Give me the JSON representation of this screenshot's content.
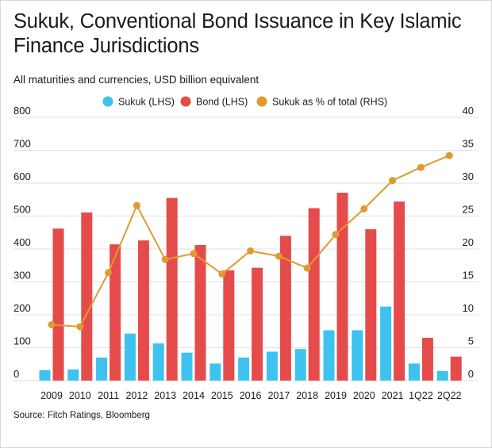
{
  "title": "Sukuk, Conventional Bond Issuance in Key Islamic Finance Jurisdictions",
  "subtitle": "All maturities and currencies, USD billion equivalent",
  "source": "Source: Fitch Ratings, Bloomberg",
  "colors": {
    "sukuk": "#3ec3f0",
    "bond": "#e64b4b",
    "ratio": "#e09a2e",
    "grid": "#e2e2e2",
    "text": "#1a1a1a"
  },
  "chart_data": {
    "type": "bar",
    "title": "Sukuk, Conventional Bond Issuance in Key Islamic Finance Jurisdictions",
    "subtitle": "All maturities and currencies, USD billion equivalent",
    "categories": [
      "2009",
      "2010",
      "2011",
      "2012",
      "2013",
      "2014",
      "2015",
      "2016",
      "2017",
      "2018",
      "2019",
      "2020",
      "2021",
      "1Q22",
      "2Q22"
    ],
    "series": [
      {
        "name": "Sukuk (LHS)",
        "kind": "bar",
        "axis": "left",
        "values": [
          32,
          34,
          70,
          143,
          113,
          85,
          52,
          70,
          88,
          96,
          153,
          153,
          225,
          52,
          29
        ]
      },
      {
        "name": "Bond (LHS)",
        "kind": "bar",
        "axis": "left",
        "values": [
          462,
          511,
          414,
          426,
          555,
          412,
          335,
          343,
          440,
          524,
          571,
          460,
          544,
          130,
          73
        ]
      },
      {
        "name": "Sukuk as % of total (RHS)",
        "kind": "line",
        "axis": "right",
        "values": [
          8.5,
          8.2,
          16.4,
          26.6,
          18.4,
          19.3,
          16.2,
          19.7,
          18.9,
          17.1,
          22.2,
          26.1,
          30.4,
          32.4,
          34.2
        ]
      }
    ],
    "y_left": {
      "ylim": [
        0,
        800
      ],
      "ticks": [
        "0",
        "100",
        "200",
        "300",
        "400",
        "500",
        "600",
        "700",
        "800"
      ]
    },
    "y_right": {
      "ylim": [
        0,
        40
      ],
      "ticks": [
        "0",
        "5",
        "10",
        "15",
        "20",
        "25",
        "30",
        "35",
        "40"
      ]
    },
    "legend": {
      "position": "top",
      "entries": [
        "Sukuk (LHS)",
        "Bond (LHS)",
        "Sukuk as % of total (RHS)"
      ]
    },
    "grid": true
  }
}
